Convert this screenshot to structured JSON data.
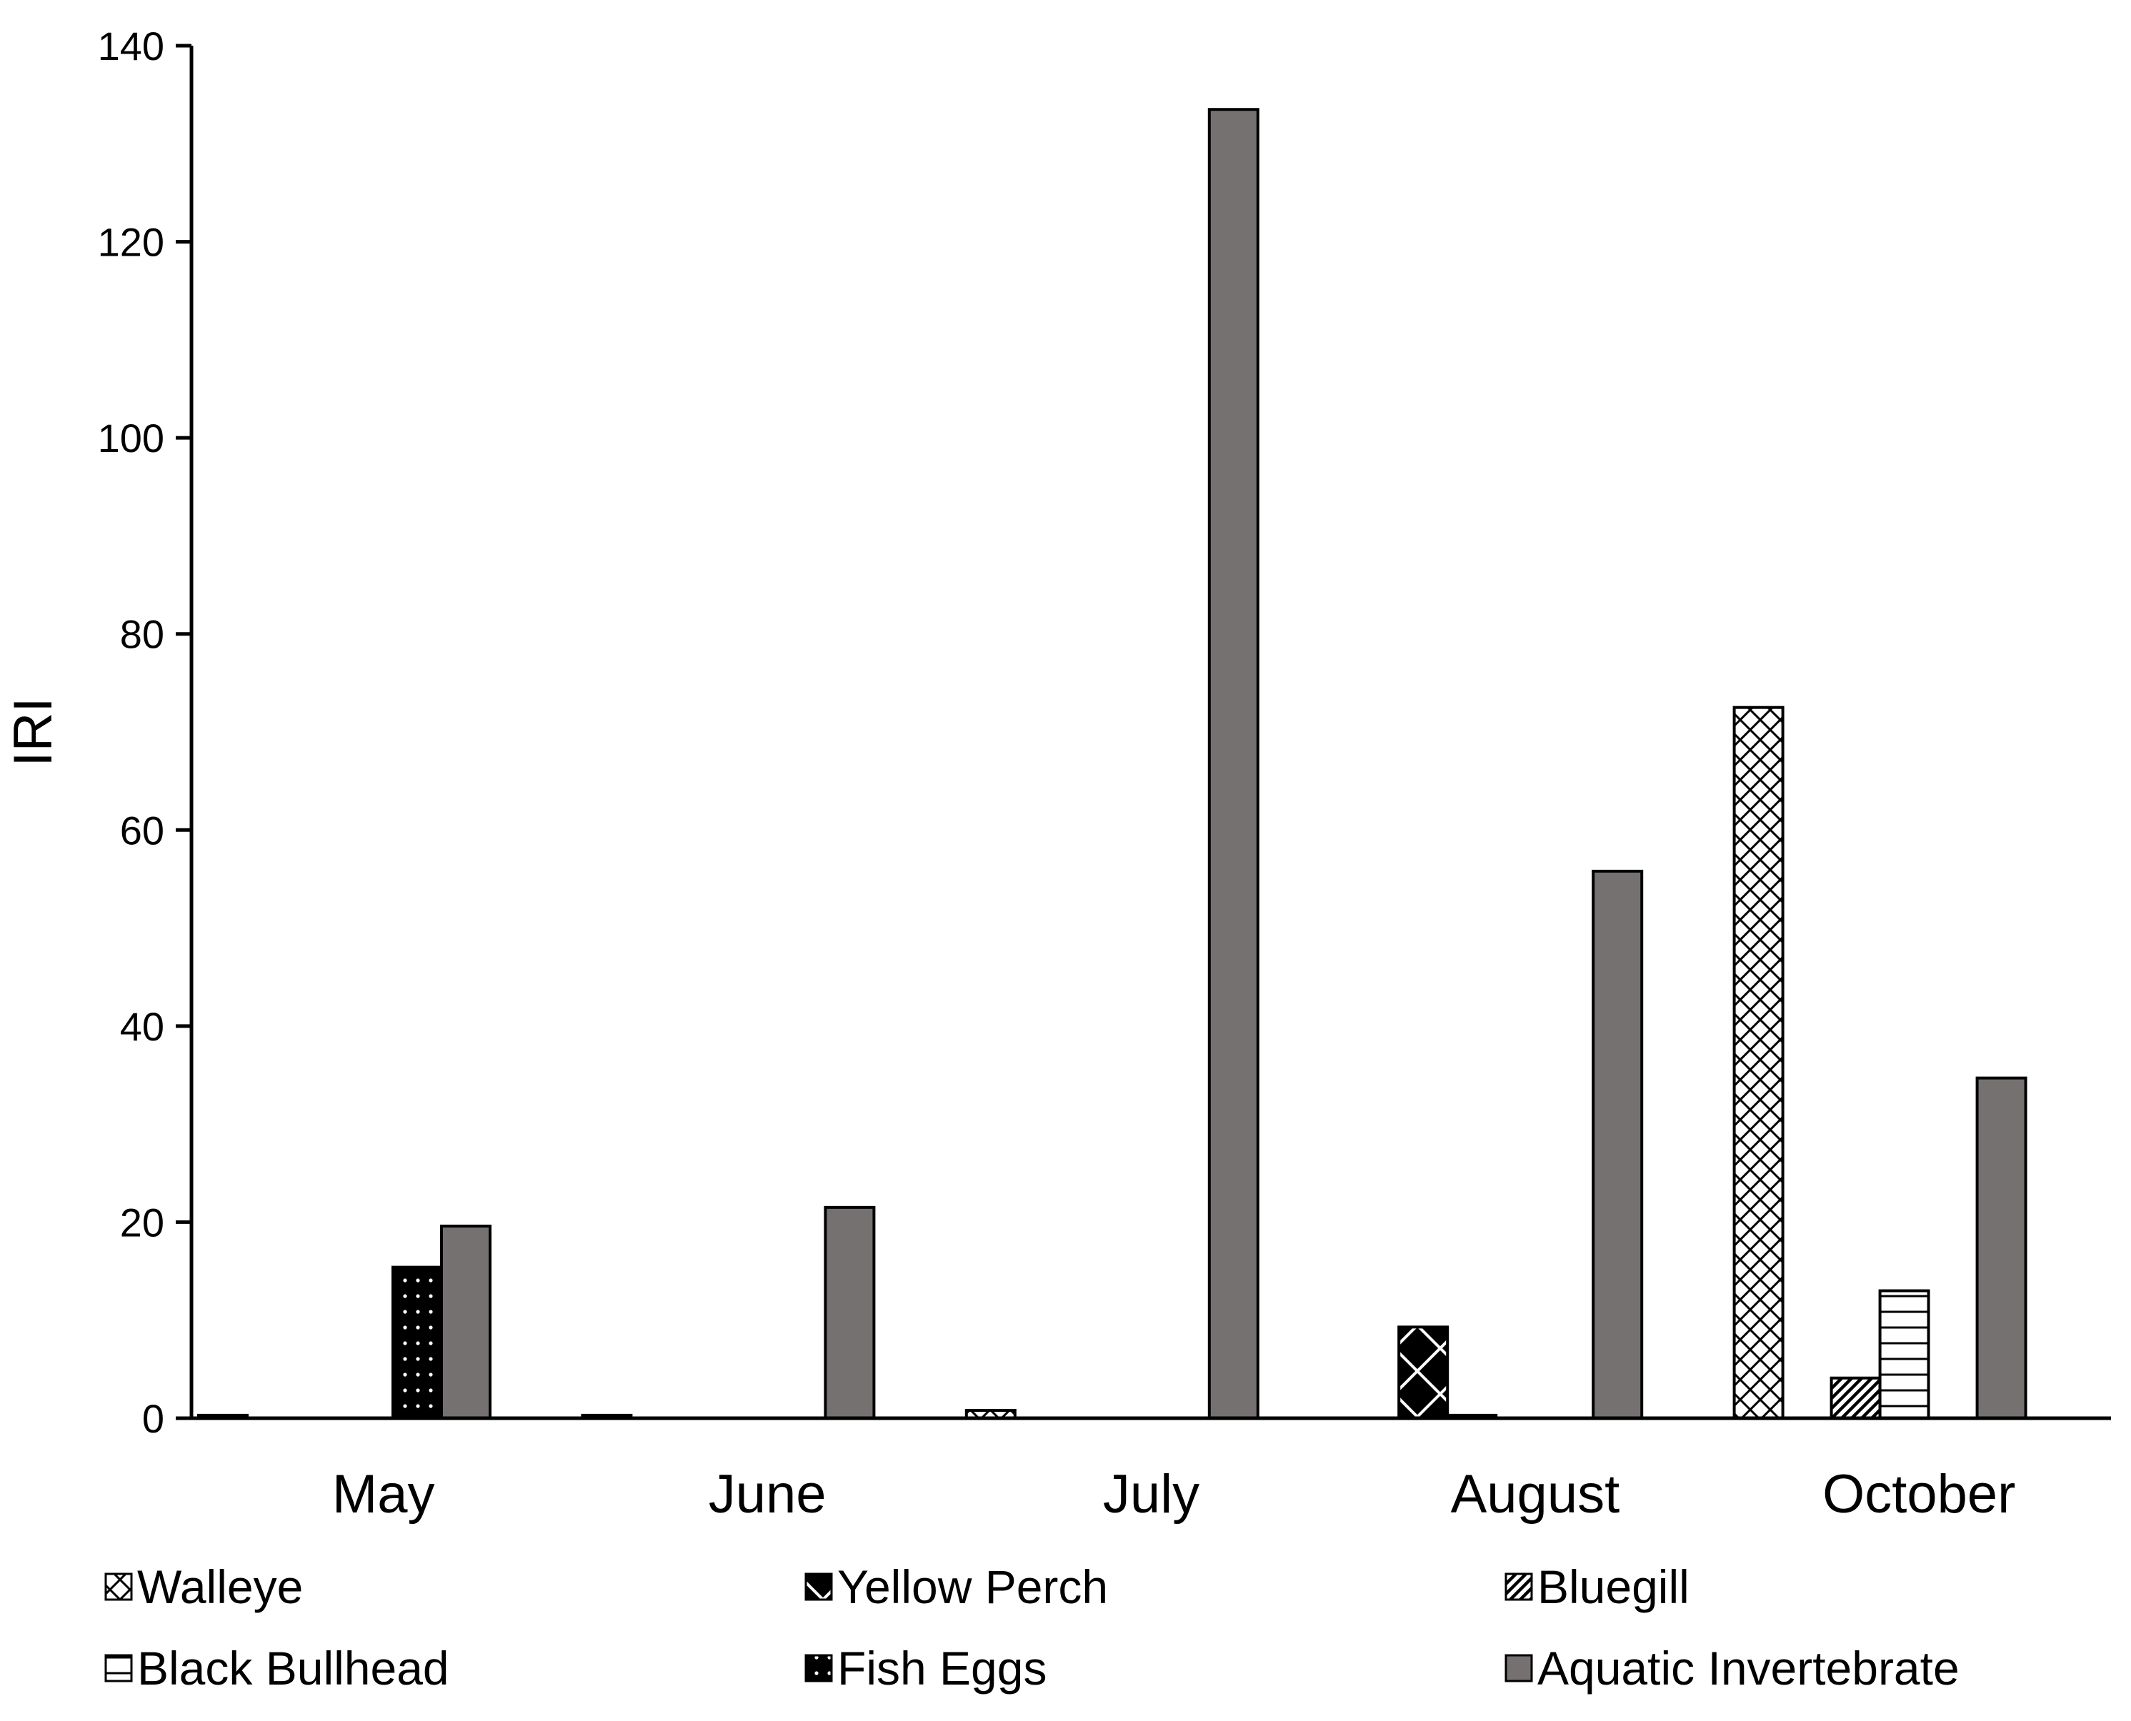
{
  "chart_data": {
    "type": "bar",
    "title": "",
    "xlabel": "",
    "ylabel": "IRI",
    "ylim": [
      0,
      140
    ],
    "yticks": [
      0,
      20,
      40,
      60,
      80,
      100,
      120,
      140
    ],
    "ytick_labels": [
      "0",
      "20",
      "40",
      "60",
      "80",
      "100",
      "120",
      "140"
    ],
    "grid": false,
    "legend_position": "bottom",
    "categories": [
      "May",
      "June",
      "July",
      "August",
      "October"
    ],
    "series": [
      {
        "name": "Walleye",
        "pattern": "crosshatch-light",
        "values": [
          0.3,
          0.3,
          0.8,
          0,
          72.5
        ]
      },
      {
        "name": "Yellow Perch",
        "pattern": "crosshatch-dark",
        "values": [
          0,
          0,
          0,
          9.3,
          0
        ]
      },
      {
        "name": "Bluegill",
        "pattern": "diagonal",
        "values": [
          0,
          0,
          0,
          0.3,
          4.1
        ]
      },
      {
        "name": "Black Bullhead",
        "pattern": "horizontal",
        "values": [
          0,
          0,
          0,
          0,
          13.0
        ]
      },
      {
        "name": "Fish Eggs",
        "pattern": "dots-dark",
        "values": [
          15.4,
          0,
          0,
          0,
          0
        ]
      },
      {
        "name": "Aquatic Invertebrate",
        "pattern": "solid-gray",
        "values": [
          19.6,
          21.5,
          133.5,
          55.8,
          34.7
        ]
      }
    ],
    "colors": {
      "axis": "#000000",
      "invertebrate_fill": "#767171",
      "dark_fill": "#000000",
      "light_fill": "#ffffff"
    }
  }
}
